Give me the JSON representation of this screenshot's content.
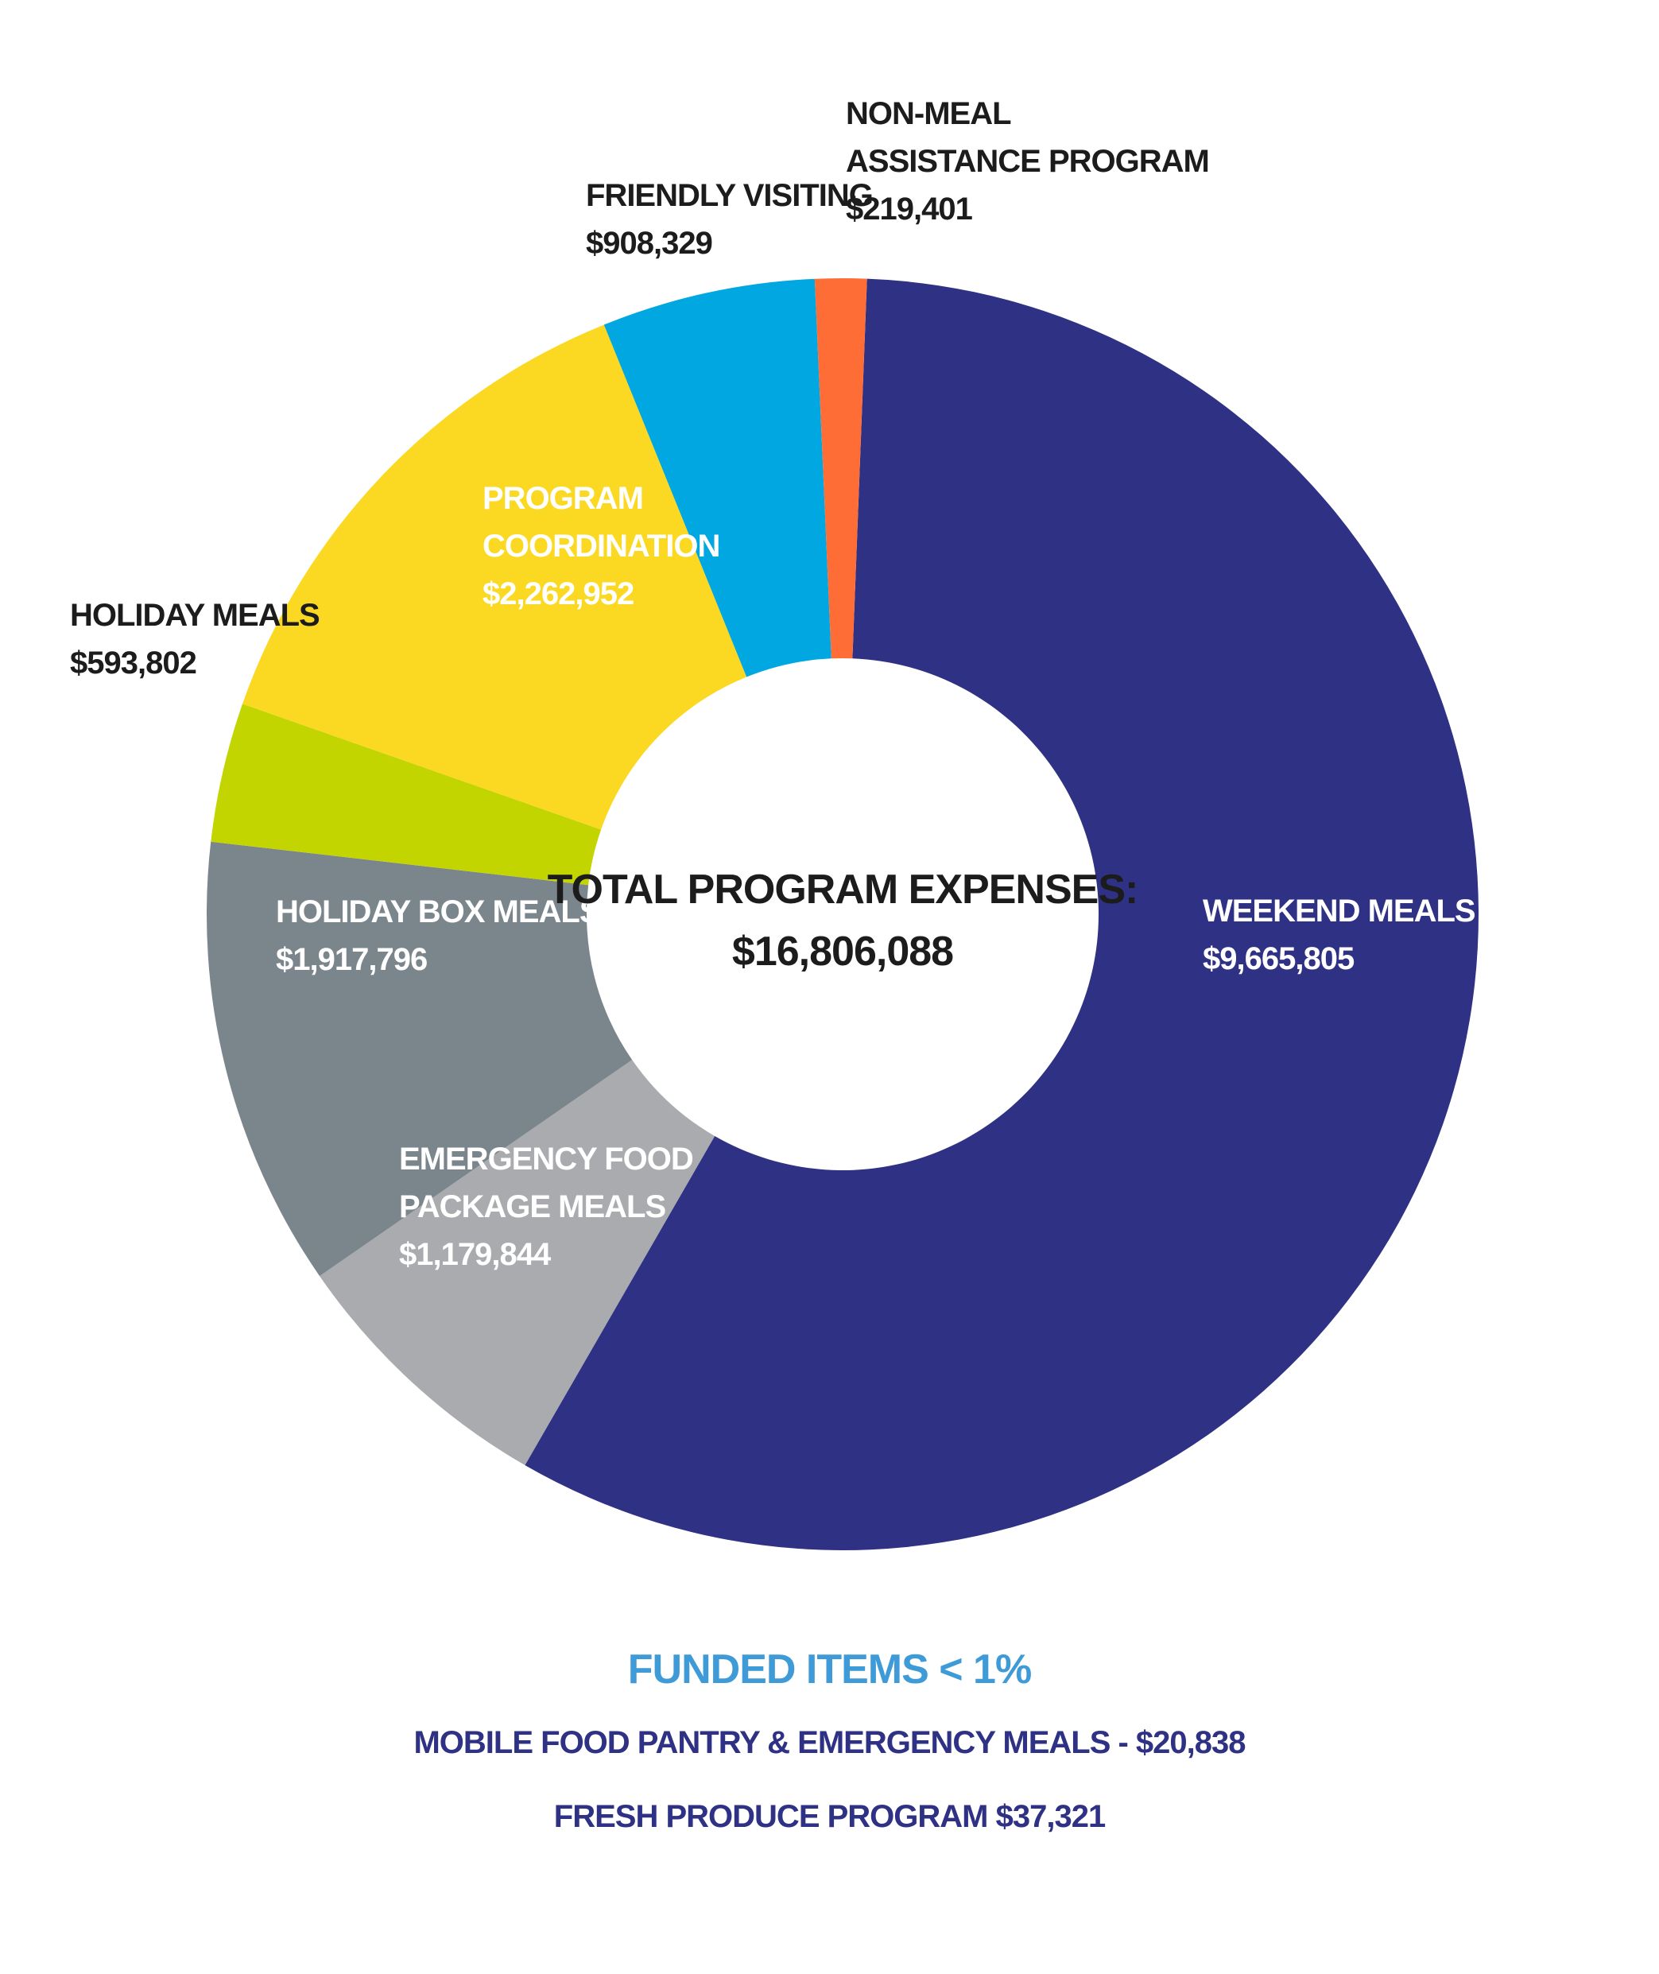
{
  "chart_data": {
    "type": "pie",
    "center_label": [
      "TOTAL PROGRAM EXPENSES:",
      "$16,806,088"
    ],
    "slices": [
      {
        "name_lines": [
          "WEEKEND MEALS"
        ],
        "value": 9665805,
        "value_label": "$9,665,805",
        "color": "#2e3184"
      },
      {
        "name_lines": [
          "EMERGENCY FOOD",
          "PACKAGE MEALS"
        ],
        "value": 1179844,
        "value_label": "$1,179,844",
        "color": "#a9abae"
      },
      {
        "name_lines": [
          "HOLIDAY BOX MEALS"
        ],
        "value": 1917796,
        "value_label": "$1,917,796",
        "color": "#7b868c"
      },
      {
        "name_lines": [
          "HOLIDAY MEALS"
        ],
        "value": 593802,
        "value_label": "$593,802",
        "color": "#c3d500"
      },
      {
        "name_lines": [
          "PROGRAM",
          "COORDINATION"
        ],
        "value": 2262952,
        "value_label": "$2,262,952",
        "color": "#fbd922"
      },
      {
        "name_lines": [
          "FRIENDLY VISITING"
        ],
        "value": 908329,
        "value_label": "$908,329",
        "color": "#00a7e0"
      },
      {
        "name_lines": [
          "NON-MEAL",
          "ASSISTANCE PROGRAM"
        ],
        "value": 219401,
        "value_label": "$219,401",
        "color": "#ff6d37"
      }
    ]
  },
  "funded": {
    "title": "FUNDED ITEMS < 1%",
    "items": [
      "MOBILE FOOD PANTRY & EMERGENCY MEALS - $20,838",
      "FRESH PRODUCE PROGRAM $37,321"
    ]
  }
}
